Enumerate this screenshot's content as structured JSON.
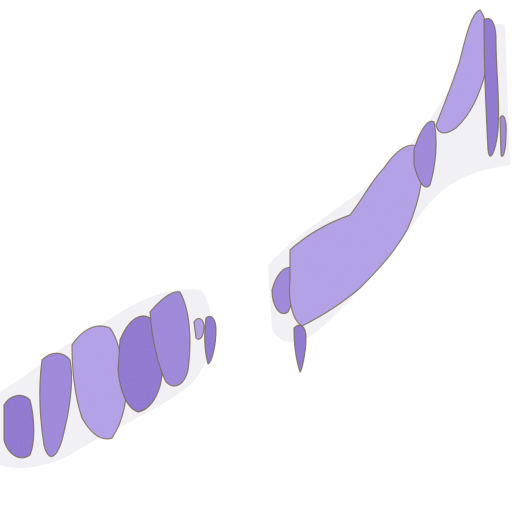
{
  "image": {
    "background_color": "#ffffff",
    "tissue_color": "#9b86d8",
    "tissue_dark_color": "#8a74cc",
    "tissue_light_color": "#b3a2e6",
    "edge_color": "#6b5a2e",
    "halo_color": "#eeeef2"
  }
}
